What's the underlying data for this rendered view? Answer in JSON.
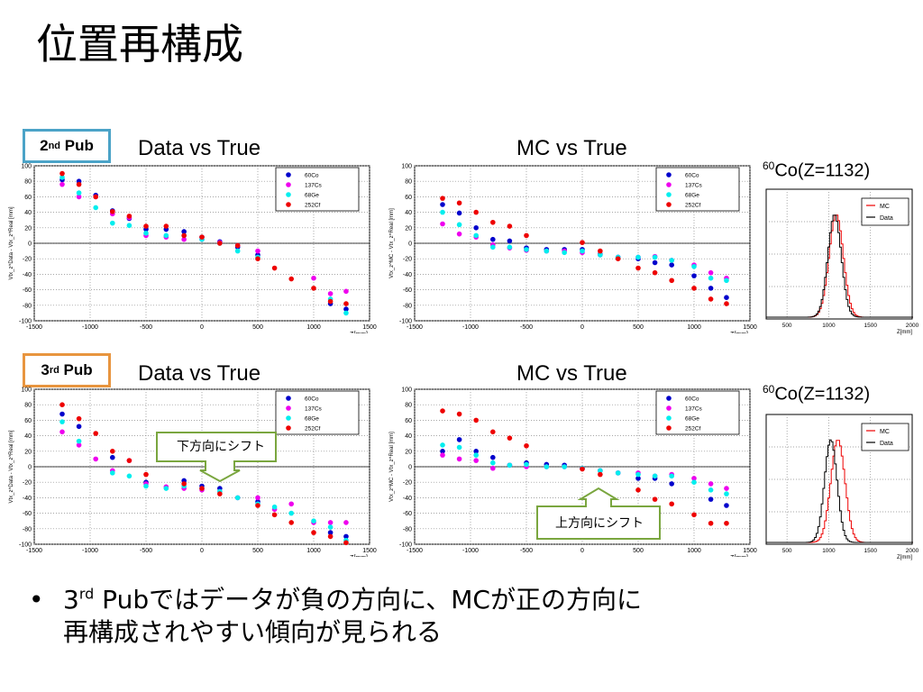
{
  "title": "位置再構成",
  "rows": [
    {
      "badge_sup": "nd",
      "badge_text": " Pub",
      "badge_num": "2",
      "left_title": "Data vs True",
      "right_title": "MC vs True"
    },
    {
      "badge_sup": "rd",
      "badge_text": " Pub",
      "badge_num": "3",
      "left_title": "Data vs True",
      "right_title": "MC vs True"
    }
  ],
  "co_title_sup": "60",
  "co_title": "Co(Z=1132)",
  "callouts": {
    "down": "下方向にシフト",
    "up": "上方向にシフト"
  },
  "bullet": {
    "num": "3",
    "sup": "rd",
    "text1": " Pubではデータが負の方向に、MCが正の方向に",
    "text2": "再構成されやすい傾向が見られる"
  },
  "colors": {
    "Co": "#0000cc",
    "Cs": "#ee00ee",
    "Ge": "#00eeee",
    "Cf": "#ee0000",
    "mc": "#ee0000",
    "data": "#000000"
  },
  "chart_data": [
    {
      "type": "scatter",
      "name": "2nd Pub Data vs True",
      "xlabel": "Z[mm]",
      "ylabel": "Vtx_z^Data - Vtx_z^Real [mm]",
      "xlim": [
        -1500,
        1500
      ],
      "ylim": [
        -100,
        100
      ],
      "xticks": [
        -1500,
        -1000,
        -500,
        0,
        500,
        1000,
        1500
      ],
      "yticks": [
        -100,
        -80,
        -60,
        -40,
        -20,
        0,
        20,
        40,
        60,
        80,
        100
      ],
      "legend": [
        "60Co",
        "137Cs",
        "68Ge",
        "252Cf"
      ],
      "x": [
        -1250,
        -1100,
        -950,
        -800,
        -650,
        -500,
        -320,
        -160,
        0,
        160,
        320,
        500,
        650,
        800,
        1000,
        1150,
        1290
      ],
      "series": [
        {
          "name": "60Co",
          "values": [
            82,
            80,
            62,
            42,
            32,
            18,
            18,
            15,
            8,
            2,
            -5,
            -15,
            null,
            null,
            null,
            -78,
            -85
          ]
        },
        {
          "name": "137Cs",
          "values": [
            76,
            60,
            60,
            38,
            33,
            10,
            8,
            5,
            5,
            1,
            -3,
            -10,
            null,
            null,
            -45,
            -65,
            -62
          ]
        },
        {
          "name": "68Ge",
          "values": [
            85,
            65,
            46,
            26,
            23,
            13,
            10,
            10,
            5,
            0,
            -10,
            -18,
            null,
            null,
            null,
            -72,
            -90
          ]
        },
        {
          "name": "252Cf",
          "values": [
            90,
            76,
            60,
            41,
            35,
            22,
            22,
            10,
            8,
            0,
            -3,
            -20,
            -32,
            -46,
            -58,
            -75,
            -78
          ]
        }
      ]
    },
    {
      "type": "scatter",
      "name": "2nd Pub MC vs True",
      "xlabel": "Z[mm]",
      "ylabel": "Vtx_z^MC - Vtx_z^Real [mm]",
      "xlim": [
        -1500,
        1500
      ],
      "ylim": [
        -100,
        100
      ],
      "xticks": [
        -1500,
        -1000,
        -500,
        0,
        500,
        1000,
        1500
      ],
      "yticks": [
        -100,
        -80,
        -60,
        -40,
        -20,
        0,
        20,
        40,
        60,
        80,
        100
      ],
      "legend": [
        "60Co",
        "137Cs",
        "68Ge",
        "252Cf"
      ],
      "x": [
        -1250,
        -1100,
        -950,
        -800,
        -650,
        -500,
        -320,
        -160,
        0,
        160,
        320,
        500,
        650,
        800,
        1000,
        1150,
        1290
      ],
      "series": [
        {
          "name": "60Co",
          "values": [
            50,
            39,
            20,
            5,
            3,
            -6,
            -8,
            -8,
            -8,
            -14,
            -18,
            -20,
            -25,
            -28,
            -42,
            -58,
            -70
          ]
        },
        {
          "name": "137Cs",
          "values": [
            25,
            12,
            8,
            -2,
            -6,
            -9,
            -10,
            -10,
            -12,
            -15,
            -18,
            -18,
            -17,
            -22,
            -28,
            -38,
            -45
          ]
        },
        {
          "name": "68Ge",
          "values": [
            40,
            24,
            10,
            -5,
            -5,
            -8,
            -10,
            -12,
            -10,
            -15,
            -18,
            -18,
            -18,
            -22,
            -30,
            -45,
            -48
          ]
        },
        {
          "name": "252Cf",
          "values": [
            58,
            52,
            40,
            27,
            22,
            10,
            null,
            null,
            1,
            -10,
            -20,
            -32,
            -38,
            -48,
            -58,
            -72,
            -78
          ]
        }
      ]
    },
    {
      "type": "scatter",
      "name": "3rd Pub Data vs True",
      "xlabel": "Z[mm]",
      "ylabel": "Vtx_z^Data - Vtx_z^Real [mm]",
      "xlim": [
        -1500,
        1500
      ],
      "ylim": [
        -100,
        100
      ],
      "xticks": [
        -1500,
        -1000,
        -500,
        0,
        500,
        1000,
        1500
      ],
      "yticks": [
        -100,
        -80,
        -60,
        -40,
        -20,
        0,
        20,
        40,
        60,
        80,
        100
      ],
      "legend": [
        "60Co",
        "137Cs",
        "68Ge",
        "252Cf"
      ],
      "x": [
        -1250,
        -1100,
        -950,
        -800,
        -650,
        -500,
        -320,
        -160,
        0,
        160,
        320,
        500,
        650,
        800,
        1000,
        1150,
        1290
      ],
      "series": [
        {
          "name": "60Co",
          "values": [
            68,
            52,
            null,
            12,
            null,
            -20,
            null,
            -18,
            -25,
            -28,
            null,
            -45,
            null,
            null,
            null,
            -85,
            -90
          ]
        },
        {
          "name": "137Cs",
          "values": [
            45,
            28,
            10,
            -5,
            8,
            -22,
            -26,
            -28,
            -30,
            -32,
            -40,
            -40,
            -55,
            -48,
            -72,
            -72,
            -72
          ]
        },
        {
          "name": "68Ge",
          "values": [
            58,
            33,
            null,
            -8,
            -12,
            -25,
            -28,
            -25,
            -28,
            -32,
            -40,
            -48,
            -52,
            -60,
            -70,
            -78,
            -95
          ]
        },
        {
          "name": "252Cf",
          "values": [
            80,
            62,
            43,
            20,
            8,
            -10,
            null,
            -22,
            -28,
            -35,
            null,
            -50,
            -62,
            -72,
            -85,
            -90,
            -98
          ]
        }
      ]
    },
    {
      "type": "scatter",
      "name": "3rd Pub MC vs True",
      "xlabel": "Z[mm]",
      "ylabel": "Vtx_z^MC - Vtx_z^Real [mm]",
      "xlim": [
        -1500,
        1500
      ],
      "ylim": [
        -100,
        100
      ],
      "xticks": [
        -1500,
        -1000,
        -500,
        0,
        500,
        1000,
        1500
      ],
      "yticks": [
        -100,
        -80,
        -60,
        -40,
        -20,
        0,
        20,
        40,
        60,
        80,
        100
      ],
      "legend": [
        "60Co",
        "137Cs",
        "68Ge",
        "252Cf"
      ],
      "x": [
        -1250,
        -1100,
        -950,
        -800,
        -650,
        -500,
        -320,
        -160,
        0,
        160,
        320,
        500,
        650,
        800,
        1000,
        1150,
        1290
      ],
      "series": [
        {
          "name": "60Co",
          "values": [
            20,
            35,
            20,
            12,
            2,
            5,
            3,
            2,
            -2,
            -5,
            -8,
            -15,
            -15,
            -22,
            null,
            -42,
            -50
          ]
        },
        {
          "name": "137Cs",
          "values": [
            15,
            10,
            8,
            -2,
            2,
            0,
            0,
            0,
            -2,
            -5,
            -8,
            -8,
            -12,
            -10,
            -15,
            -22,
            -28
          ]
        },
        {
          "name": "68Ge",
          "values": [
            28,
            25,
            15,
            5,
            2,
            3,
            0,
            0,
            -2,
            -5,
            -8,
            -10,
            -12,
            -12,
            -20,
            -30,
            -35
          ]
        },
        {
          "name": "252Cf",
          "values": [
            72,
            68,
            60,
            45,
            37,
            27,
            null,
            null,
            -3,
            -10,
            null,
            -30,
            -42,
            -48,
            -62,
            -73,
            -73
          ]
        }
      ]
    },
    {
      "type": "line",
      "name": "2nd Pub 60Co(Z=1132)",
      "xlabel": "Z[mm]",
      "xlim": [
        250,
        2000
      ],
      "xticks": [
        500,
        1000,
        1500,
        2000
      ],
      "legend": [
        "MC",
        "Data"
      ],
      "series": [
        {
          "name": "MC",
          "mean": 1080,
          "sigma": 85,
          "peak": 1.0
        },
        {
          "name": "Data",
          "mean": 1060,
          "sigma": 80,
          "peak": 1.0
        }
      ]
    },
    {
      "type": "line",
      "name": "3rd Pub 60Co(Z=1132)",
      "xlabel": "Z[mm]",
      "xlim": [
        250,
        2000
      ],
      "xticks": [
        500,
        1000,
        1500,
        2000
      ],
      "legend": [
        "MC",
        "Data"
      ],
      "series": [
        {
          "name": "MC",
          "mean": 1100,
          "sigma": 85,
          "peak": 1.0
        },
        {
          "name": "Data",
          "mean": 1015,
          "sigma": 75,
          "peak": 1.0
        }
      ]
    }
  ]
}
